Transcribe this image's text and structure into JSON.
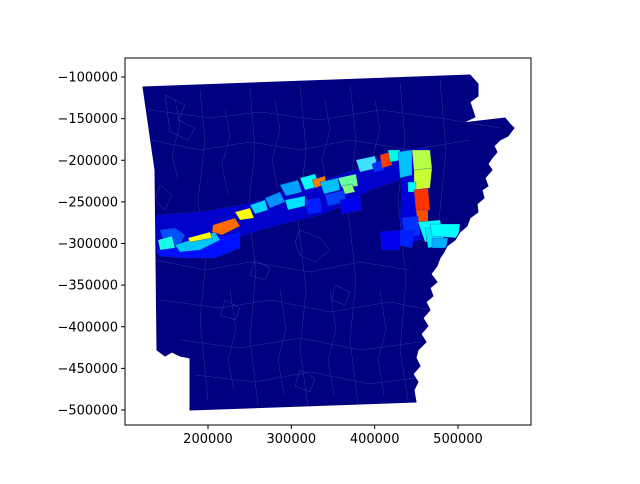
{
  "figure": {
    "type": "choropleth map",
    "colormap": "jet",
    "background_color": "#000080",
    "boundary_color": "#4f5fb0"
  },
  "chart_data": {
    "type": "heatmap",
    "title": "",
    "xlabel": "",
    "ylabel": "",
    "xlim": [
      100000,
      590000
    ],
    "ylim": [
      -520000,
      -60000
    ],
    "x_ticks": [
      200000,
      300000,
      400000,
      500000
    ],
    "x_tick_labels": [
      "200000",
      "300000",
      "400000",
      "500000"
    ],
    "y_ticks": [
      -100000,
      -150000,
      -200000,
      -250000,
      -300000,
      -350000,
      -400000,
      -450000,
      -500000
    ],
    "y_tick_labels": [
      "−100000",
      "−150000",
      "−200000",
      "−250000",
      "−300000",
      "−350000",
      "−400000",
      "−450000",
      "−500000"
    ],
    "grid": false,
    "legend": "none"
  }
}
